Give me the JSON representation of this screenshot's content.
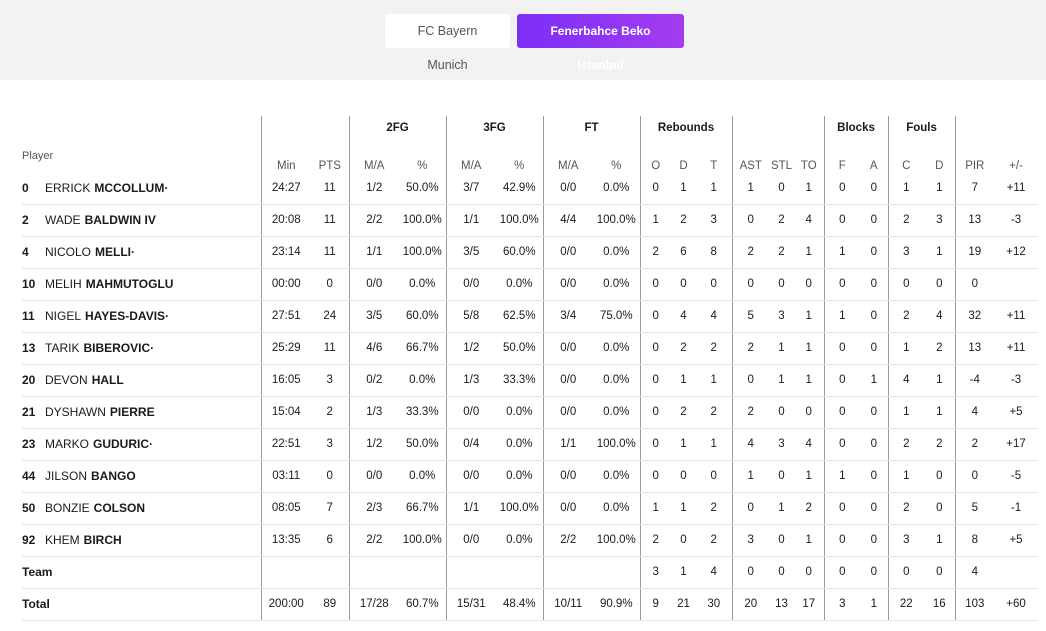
{
  "teams": {
    "home": "FC Bayern Munich",
    "away": "Fenerbahce Beko Istanbul"
  },
  "groups": {
    "fg2": "2FG",
    "fg3": "3FG",
    "ft": "FT",
    "reb": "Rebounds",
    "blk": "Blocks",
    "fouls": "Fouls"
  },
  "headers": {
    "player": "Player",
    "min": "Min",
    "pts": "PTS",
    "ma": "M/A",
    "pct": "%",
    "o": "O",
    "d": "D",
    "t": "T",
    "ast": "AST",
    "stl": "STL",
    "to": "TO",
    "f": "F",
    "a": "A",
    "c": "C",
    "cd": "D",
    "pir": "PIR",
    "pm": "+/-"
  },
  "players": [
    {
      "num": "0",
      "first": "ERRICK",
      "last": "MCCOLLUM·",
      "min": "24:27",
      "pts": "11",
      "fg2": "1/2",
      "fg2p": "50.0%",
      "fg3": "3/7",
      "fg3p": "42.9%",
      "ft": "0/0",
      "ftp": "0.0%",
      "o": "0",
      "d": "1",
      "t": "1",
      "ast": "1",
      "stl": "0",
      "to": "1",
      "bf": "0",
      "ba": "0",
      "fc": "1",
      "fd": "1",
      "pir": "7",
      "pm": "+11"
    },
    {
      "num": "2",
      "first": "WADE",
      "last": "BALDWIN IV",
      "min": "20:08",
      "pts": "11",
      "fg2": "2/2",
      "fg2p": "100.0%",
      "fg3": "1/1",
      "fg3p": "100.0%",
      "ft": "4/4",
      "ftp": "100.0%",
      "o": "1",
      "d": "2",
      "t": "3",
      "ast": "0",
      "stl": "2",
      "to": "4",
      "bf": "0",
      "ba": "0",
      "fc": "2",
      "fd": "3",
      "pir": "13",
      "pm": "-3"
    },
    {
      "num": "4",
      "first": "NICOLO",
      "last": "MELLI·",
      "min": "23:14",
      "pts": "11",
      "fg2": "1/1",
      "fg2p": "100.0%",
      "fg3": "3/5",
      "fg3p": "60.0%",
      "ft": "0/0",
      "ftp": "0.0%",
      "o": "2",
      "d": "6",
      "t": "8",
      "ast": "2",
      "stl": "2",
      "to": "1",
      "bf": "1",
      "ba": "0",
      "fc": "3",
      "fd": "1",
      "pir": "19",
      "pm": "+12"
    },
    {
      "num": "10",
      "first": "MELIH",
      "last": "MAHMUTOGLU",
      "min": "00:00",
      "pts": "0",
      "fg2": "0/0",
      "fg2p": "0.0%",
      "fg3": "0/0",
      "fg3p": "0.0%",
      "ft": "0/0",
      "ftp": "0.0%",
      "o": "0",
      "d": "0",
      "t": "0",
      "ast": "0",
      "stl": "0",
      "to": "0",
      "bf": "0",
      "ba": "0",
      "fc": "0",
      "fd": "0",
      "pir": "0",
      "pm": ""
    },
    {
      "num": "11",
      "first": "NIGEL",
      "last": "HAYES-DAVIS·",
      "min": "27:51",
      "pts": "24",
      "fg2": "3/5",
      "fg2p": "60.0%",
      "fg3": "5/8",
      "fg3p": "62.5%",
      "ft": "3/4",
      "ftp": "75.0%",
      "o": "0",
      "d": "4",
      "t": "4",
      "ast": "5",
      "stl": "3",
      "to": "1",
      "bf": "1",
      "ba": "0",
      "fc": "2",
      "fd": "4",
      "pir": "32",
      "pm": "+11"
    },
    {
      "num": "13",
      "first": "TARIK",
      "last": "BIBEROVIC·",
      "min": "25:29",
      "pts": "11",
      "fg2": "4/6",
      "fg2p": "66.7%",
      "fg3": "1/2",
      "fg3p": "50.0%",
      "ft": "0/0",
      "ftp": "0.0%",
      "o": "0",
      "d": "2",
      "t": "2",
      "ast": "2",
      "stl": "1",
      "to": "1",
      "bf": "0",
      "ba": "0",
      "fc": "1",
      "fd": "2",
      "pir": "13",
      "pm": "+11"
    },
    {
      "num": "20",
      "first": "DEVON",
      "last": "HALL",
      "min": "16:05",
      "pts": "3",
      "fg2": "0/2",
      "fg2p": "0.0%",
      "fg3": "1/3",
      "fg3p": "33.3%",
      "ft": "0/0",
      "ftp": "0.0%",
      "o": "0",
      "d": "1",
      "t": "1",
      "ast": "0",
      "stl": "1",
      "to": "1",
      "bf": "0",
      "ba": "1",
      "fc": "4",
      "fd": "1",
      "pir": "-4",
      "pm": "-3"
    },
    {
      "num": "21",
      "first": "DYSHAWN",
      "last": "PIERRE",
      "min": "15:04",
      "pts": "2",
      "fg2": "1/3",
      "fg2p": "33.3%",
      "fg3": "0/0",
      "fg3p": "0.0%",
      "ft": "0/0",
      "ftp": "0.0%",
      "o": "0",
      "d": "2",
      "t": "2",
      "ast": "2",
      "stl": "0",
      "to": "0",
      "bf": "0",
      "ba": "0",
      "fc": "1",
      "fd": "1",
      "pir": "4",
      "pm": "+5"
    },
    {
      "num": "23",
      "first": "MARKO",
      "last": "GUDURIC·",
      "min": "22:51",
      "pts": "3",
      "fg2": "1/2",
      "fg2p": "50.0%",
      "fg3": "0/4",
      "fg3p": "0.0%",
      "ft": "1/1",
      "ftp": "100.0%",
      "o": "0",
      "d": "1",
      "t": "1",
      "ast": "4",
      "stl": "3",
      "to": "4",
      "bf": "0",
      "ba": "0",
      "fc": "2",
      "fd": "2",
      "pir": "2",
      "pm": "+17"
    },
    {
      "num": "44",
      "first": "JILSON",
      "last": "BANGO",
      "min": "03:11",
      "pts": "0",
      "fg2": "0/0",
      "fg2p": "0.0%",
      "fg3": "0/0",
      "fg3p": "0.0%",
      "ft": "0/0",
      "ftp": "0.0%",
      "o": "0",
      "d": "0",
      "t": "0",
      "ast": "1",
      "stl": "0",
      "to": "1",
      "bf": "1",
      "ba": "0",
      "fc": "1",
      "fd": "0",
      "pir": "0",
      "pm": "-5"
    },
    {
      "num": "50",
      "first": "BONZIE",
      "last": "COLSON",
      "min": "08:05",
      "pts": "7",
      "fg2": "2/3",
      "fg2p": "66.7%",
      "fg3": "1/1",
      "fg3p": "100.0%",
      "ft": "0/0",
      "ftp": "0.0%",
      "o": "1",
      "d": "1",
      "t": "2",
      "ast": "0",
      "stl": "1",
      "to": "2",
      "bf": "0",
      "ba": "0",
      "fc": "2",
      "fd": "0",
      "pir": "5",
      "pm": "-1"
    },
    {
      "num": "92",
      "first": "KHEM",
      "last": "BIRCH",
      "min": "13:35",
      "pts": "6",
      "fg2": "2/2",
      "fg2p": "100.0%",
      "fg3": "0/0",
      "fg3p": "0.0%",
      "ft": "2/2",
      "ftp": "100.0%",
      "o": "2",
      "d": "0",
      "t": "2",
      "ast": "3",
      "stl": "0",
      "to": "1",
      "bf": "0",
      "ba": "0",
      "fc": "3",
      "fd": "1",
      "pir": "8",
      "pm": "+5"
    }
  ],
  "team_row": {
    "label": "Team",
    "o": "3",
    "d": "1",
    "t": "4",
    "ast": "0",
    "stl": "0",
    "to": "0",
    "bf": "0",
    "ba": "0",
    "fc": "0",
    "fd": "0",
    "pir": "4"
  },
  "total_row": {
    "label": "Total",
    "min": "200:00",
    "pts": "89",
    "fg2": "17/28",
    "fg2p": "60.7%",
    "fg3": "15/31",
    "fg3p": "48.4%",
    "ft": "10/11",
    "ftp": "90.9%",
    "o": "9",
    "d": "21",
    "t": "30",
    "ast": "20",
    "stl": "13",
    "to": "17",
    "bf": "3",
    "ba": "1",
    "fc": "22",
    "fd": "16",
    "pir": "103",
    "pm": "+60"
  }
}
